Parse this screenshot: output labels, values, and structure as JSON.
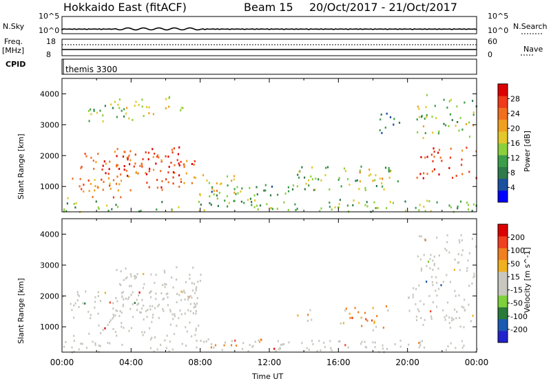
{
  "header": {
    "station": "Hokkaido East (fitACF)",
    "beam": "Beam 15",
    "date_range": "20/Oct/2017 - 21/Oct/2017"
  },
  "strips": {
    "nsky_label": "N.Sky",
    "nsky_ticks": [
      "10^5",
      "10^0"
    ],
    "nsearch_label": "N.Search",
    "nsearch_ticks": [
      "10^5",
      "10^0"
    ],
    "freq_label": "Freq.",
    "freq_unit": "[MHz]",
    "freq_ticks": [
      "18",
      "8"
    ],
    "nave_label": "Nave",
    "nave_ticks": [
      "60",
      "0"
    ],
    "cpid_label": "CPID",
    "cpid_value": "themis 3300"
  },
  "colors": {
    "power": [
      "#0000ff",
      "#1b4fa0",
      "#2f7a4a",
      "#3d9e4a",
      "#8ccf3c",
      "#e2c82a",
      "#f0a020",
      "#f07020",
      "#f03a1a",
      "#dd0000"
    ],
    "velocity": [
      "#2222cc",
      "#1a5ab0",
      "#2a7a3a",
      "#7ed03c",
      "#c8c8c0",
      "#c8c8c0",
      "#f0b020",
      "#f08020",
      "#f04020",
      "#dd0000"
    ],
    "velocity_gray": "#c8c8c0"
  },
  "chart_data": [
    {
      "type": "heatmap",
      "panel": "power",
      "ylabel": "Slant Range [km]",
      "xlabel": "",
      "xlim_hours": [
        0,
        24
      ],
      "ylim": [
        180,
        4500
      ],
      "y_ticks": [
        1000,
        2000,
        3000,
        4000
      ],
      "colorbar_label": "Power [dB]",
      "colorbar_ticks": [
        "28",
        "24",
        "20",
        "16",
        "12",
        "8",
        "4"
      ],
      "regions": [
        {
          "t": [
            1.0,
            7.8
          ],
          "r": [
            900,
            2100
          ],
          "level": 0.78
        },
        {
          "t": [
            3.0,
            7.2
          ],
          "r": [
            1400,
            2300
          ],
          "level": 0.85
        },
        {
          "t": [
            0.0,
            3.5
          ],
          "r": [
            600,
            1300
          ],
          "level": 0.72
        },
        {
          "t": [
            1.5,
            4.5
          ],
          "r": [
            3100,
            3900
          ],
          "level": 0.45
        },
        {
          "t": [
            4.5,
            7.0
          ],
          "r": [
            3300,
            4000
          ],
          "level": 0.55
        },
        {
          "t": [
            7.5,
            10.0
          ],
          "r": [
            700,
            1400
          ],
          "level": 0.6
        },
        {
          "t": [
            8.5,
            13.5
          ],
          "r": [
            500,
            1100
          ],
          "level": 0.35
        },
        {
          "t": [
            13.5,
            19.5
          ],
          "r": [
            900,
            1700
          ],
          "level": 0.42
        },
        {
          "t": [
            16.0,
            18.5
          ],
          "r": [
            1200,
            1700
          ],
          "level": 0.6
        },
        {
          "t": [
            18.0,
            19.5
          ],
          "r": [
            2700,
            3400
          ],
          "level": 0.2
        },
        {
          "t": [
            20.5,
            24.0
          ],
          "r": [
            1300,
            2300
          ],
          "level": 0.85
        },
        {
          "t": [
            20.5,
            24.0
          ],
          "r": [
            2600,
            4000
          ],
          "level": 0.45
        },
        {
          "t": [
            0.0,
            24.0
          ],
          "r": [
            200,
            600
          ],
          "level": 0.4
        }
      ]
    },
    {
      "type": "heatmap",
      "panel": "velocity",
      "ylabel": "Slant Range [km]",
      "xlabel": "Time UT",
      "xlim_hours": [
        0,
        24
      ],
      "ylim": [
        180,
        4500
      ],
      "y_ticks": [
        1000,
        2000,
        3000,
        4000
      ],
      "x_ticks": [
        "00:00",
        "04:00",
        "08:00",
        "12:00",
        "16:00",
        "20:00",
        "00:00"
      ],
      "colorbar_label": "Velocity [m s^-1]",
      "colorbar_ticks": [
        "200",
        "100",
        "50",
        "15",
        "-15",
        "-50",
        "-100",
        "-200"
      ],
      "regions": [
        {
          "t": [
            0.0,
            8.0
          ],
          "r": [
            600,
            2200
          ],
          "level": 0.5
        },
        {
          "t": [
            3.0,
            8.0
          ],
          "r": [
            1500,
            3000
          ],
          "level": 0.5
        },
        {
          "t": [
            8.0,
            11.5
          ],
          "r": [
            350,
            650
          ],
          "level": 0.65
        },
        {
          "t": [
            13.5,
            14.5
          ],
          "r": [
            1200,
            1700
          ],
          "level": 0.65
        },
        {
          "t": [
            16.0,
            19.0
          ],
          "r": [
            900,
            1700
          ],
          "level": 0.65
        },
        {
          "t": [
            20.0,
            24.0
          ],
          "r": [
            1000,
            2500
          ],
          "level": 0.5
        },
        {
          "t": [
            20.5,
            24.0
          ],
          "r": [
            2600,
            4000
          ],
          "level": 0.5
        },
        {
          "t": [
            0.0,
            24.0
          ],
          "r": [
            200,
            600
          ],
          "level": 0.5
        }
      ]
    }
  ]
}
